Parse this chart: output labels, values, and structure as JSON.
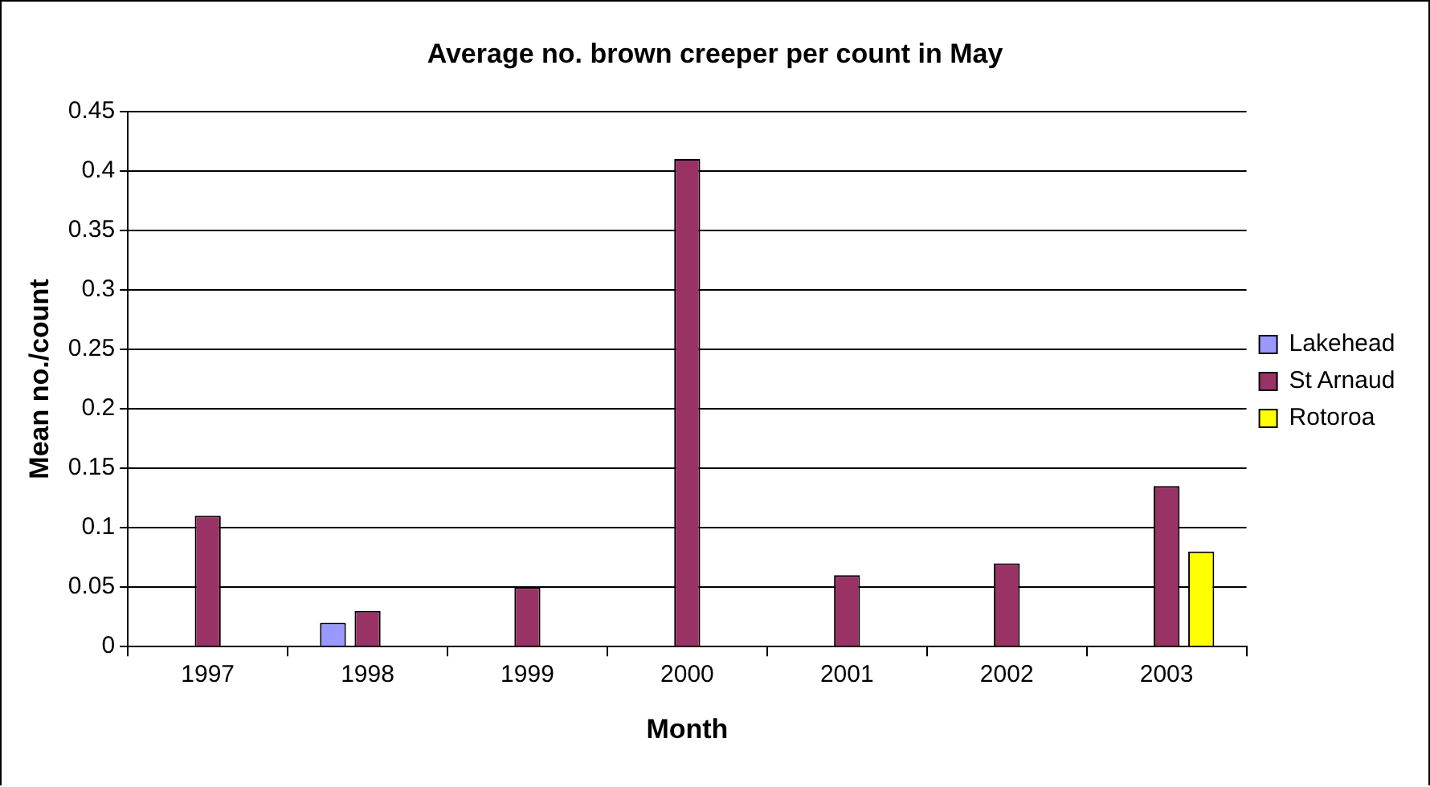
{
  "chart_data": {
    "type": "bar",
    "title": "Average no. brown creeper per count in May",
    "xlabel": "Month",
    "ylabel": "Mean no./count",
    "categories": [
      "1997",
      "1998",
      "1999",
      "2000",
      "2001",
      "2002",
      "2003"
    ],
    "series": [
      {
        "name": "Lakehead",
        "color": "#9999ff",
        "values": [
          null,
          0.02,
          null,
          null,
          null,
          null,
          null
        ]
      },
      {
        "name": "St Arnaud",
        "color": "#993366",
        "values": [
          0.11,
          0.03,
          0.05,
          0.41,
          0.06,
          0.07,
          0.135
        ]
      },
      {
        "name": "Rotoroa",
        "color": "#ffff00",
        "values": [
          null,
          null,
          null,
          null,
          null,
          null,
          0.08
        ]
      }
    ],
    "ylim": [
      0,
      0.45
    ],
    "yticks": [
      0,
      0.05,
      0.1,
      0.15,
      0.2,
      0.25,
      0.3,
      0.35,
      0.4,
      0.45
    ],
    "grid": "y",
    "legend": "right"
  }
}
